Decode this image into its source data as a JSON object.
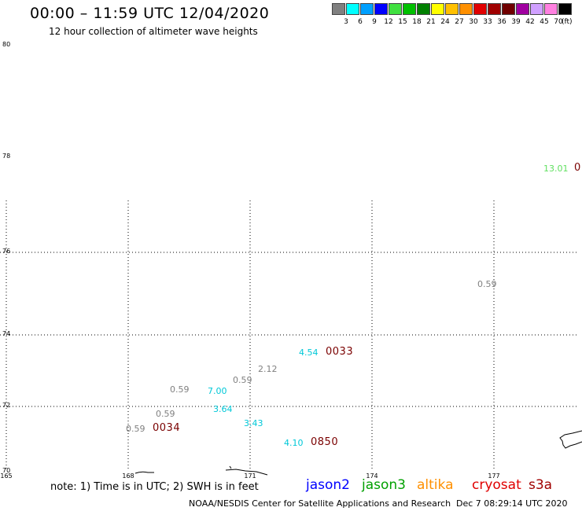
{
  "header": {
    "title": "00:00 – 11:59 UTC 12/04/2020",
    "subtitle": "12 hour collection of altimeter wave heights"
  },
  "color_scale": {
    "colors": [
      "#808080",
      "#00ffff",
      "#00a0ff",
      "#0000ff",
      "#40e040",
      "#00c000",
      "#008000",
      "#ffff00",
      "#ffc000",
      "#ff9000",
      "#e00000",
      "#a00000",
      "#700000",
      "#a000a0",
      "#d0a0ff",
      "#ff80e0",
      "#000000"
    ],
    "labels": [
      "3",
      "6",
      "9",
      "12",
      "15",
      "18",
      "21",
      "24",
      "27",
      "30",
      "33",
      "36",
      "39",
      "42",
      "45",
      "70"
    ],
    "unit": "(ft)"
  },
  "axes": {
    "lat_labels": [
      "80",
      "78",
      "76",
      "74",
      "72",
      "70"
    ],
    "lon_labels": [
      "165",
      "168",
      "171",
      "174",
      "177"
    ]
  },
  "observations": [
    {
      "value": "13.01",
      "color": "#60e060"
    },
    {
      "value": "0.59",
      "color": "#808080"
    },
    {
      "value": "4.54",
      "color": "#00c8d8"
    },
    {
      "value": "2.12",
      "color": "#808080"
    },
    {
      "value": "0.59",
      "color": "#808080"
    },
    {
      "value": "7.00",
      "color": "#00c8d8"
    },
    {
      "value": "0.59",
      "color": "#808080"
    },
    {
      "value": "3.64",
      "color": "#00c8d8"
    },
    {
      "value": "0.59",
      "color": "#808080"
    },
    {
      "value": "3.43",
      "color": "#00c8d8"
    },
    {
      "value": "0.59",
      "color": "#808080"
    },
    {
      "value": "4.10",
      "color": "#00c8d8"
    }
  ],
  "time_labels": [
    "0",
    "0033",
    "0034",
    "0850"
  ],
  "footer": {
    "note": "note: 1) Time is in UTC; 2) SWH is in feet",
    "satellites": [
      {
        "name": "jason2",
        "color": "#0000ff"
      },
      {
        "name": "jason3",
        "color": "#00a000"
      },
      {
        "name": "altika",
        "color": "#ff9000"
      },
      {
        "name": "cryosat",
        "color": "#e00000"
      },
      {
        "name": "s3a",
        "color": "#a00000"
      }
    ],
    "credit": "NOAA/NESDIS Center for Satellite Applications and Research",
    "timestamp": "Dec  7 08:29:14 UTC 2020"
  }
}
